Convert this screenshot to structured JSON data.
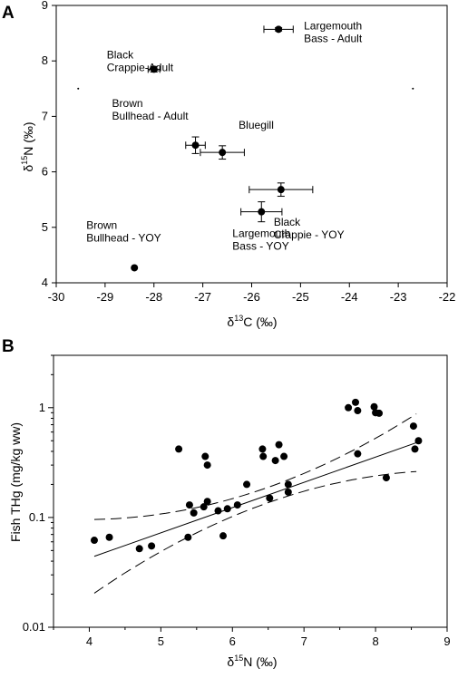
{
  "chart_data": [
    {
      "panel": "A",
      "type": "scatter",
      "xlabel": "δ13C (‰)",
      "ylabel": "δ15N (‰)",
      "xlim": [
        -30,
        -22
      ],
      "ylim": [
        4,
        9
      ],
      "xticks": [
        -30,
        -29,
        -28,
        -27,
        -26,
        -25,
        -24,
        -23,
        -22
      ],
      "yticks": [
        4,
        5,
        6,
        7,
        8,
        9
      ],
      "error_bars": true,
      "points": [
        {
          "label": "Largemouth Bass - Adult",
          "x": -25.45,
          "y": 8.57,
          "xerr": 0.3,
          "yerr": 0.03
        },
        {
          "label": "Black Crappie-Adult",
          "x": -28.0,
          "y": 7.85,
          "xerr": 0.12,
          "yerr": 0.05
        },
        {
          "label": "Brown Bullhead - Adult",
          "x": -27.15,
          "y": 6.48,
          "xerr": 0.2,
          "yerr": 0.15
        },
        {
          "label": "Bluegill",
          "x": -26.6,
          "y": 6.35,
          "xerr": 0.45,
          "yerr": 0.12
        },
        {
          "label": "Black Crappie - YOY",
          "x": -25.4,
          "y": 5.68,
          "xerr": 0.65,
          "yerr": 0.12
        },
        {
          "label": "Largemouth Bass - YOY",
          "x": -25.8,
          "y": 5.28,
          "xerr": 0.42,
          "yerr": 0.18
        },
        {
          "label": "Brown Bullhead - YOY",
          "x": -28.4,
          "y": 4.27,
          "xerr": 0,
          "yerr": 0
        }
      ]
    },
    {
      "panel": "B",
      "type": "scatter",
      "xlabel": "δ15N (‰)",
      "ylabel": "Fish THg (mg/kg ww)",
      "xlim": [
        3.5,
        9
      ],
      "ylim": [
        0.01,
        3
      ],
      "yscale": "log",
      "xticks": [
        4,
        5,
        6,
        7,
        8,
        9
      ],
      "yticks": [
        0.01,
        0.1,
        1
      ],
      "regression": {
        "intercept_log10": -2.29,
        "slope": 0.23,
        "confidence_band": true
      },
      "points": [
        {
          "x": 4.07,
          "y": 0.062
        },
        {
          "x": 4.28,
          "y": 0.066
        },
        {
          "x": 4.7,
          "y": 0.052
        },
        {
          "x": 4.87,
          "y": 0.055
        },
        {
          "x": 5.25,
          "y": 0.42
        },
        {
          "x": 5.38,
          "y": 0.066
        },
        {
          "x": 5.4,
          "y": 0.13
        },
        {
          "x": 5.46,
          "y": 0.11
        },
        {
          "x": 5.6,
          "y": 0.125
        },
        {
          "x": 5.62,
          "y": 0.36
        },
        {
          "x": 5.65,
          "y": 0.3
        },
        {
          "x": 5.65,
          "y": 0.14
        },
        {
          "x": 5.8,
          "y": 0.115
        },
        {
          "x": 5.87,
          "y": 0.068
        },
        {
          "x": 5.93,
          "y": 0.12
        },
        {
          "x": 6.07,
          "y": 0.13
        },
        {
          "x": 6.2,
          "y": 0.2
        },
        {
          "x": 6.42,
          "y": 0.42
        },
        {
          "x": 6.43,
          "y": 0.36
        },
        {
          "x": 6.52,
          "y": 0.15
        },
        {
          "x": 6.6,
          "y": 0.33
        },
        {
          "x": 6.65,
          "y": 0.46
        },
        {
          "x": 6.72,
          "y": 0.36
        },
        {
          "x": 6.78,
          "y": 0.2
        },
        {
          "x": 6.78,
          "y": 0.17
        },
        {
          "x": 7.62,
          "y": 1.0
        },
        {
          "x": 7.72,
          "y": 1.12
        },
        {
          "x": 7.75,
          "y": 0.94
        },
        {
          "x": 7.75,
          "y": 0.38
        },
        {
          "x": 7.98,
          "y": 1.02
        },
        {
          "x": 8.0,
          "y": 0.9
        },
        {
          "x": 8.05,
          "y": 0.89
        },
        {
          "x": 8.15,
          "y": 0.23
        },
        {
          "x": 8.53,
          "y": 0.68
        },
        {
          "x": 8.55,
          "y": 0.42
        },
        {
          "x": 8.6,
          "y": 0.5
        }
      ]
    }
  ],
  "panels": {
    "a": {
      "letter": "A",
      "xlabel_main": "δ",
      "xlabel_sup": "13",
      "xlabel_rest": "C  (‰)",
      "ylabel_main": "δ",
      "ylabel_sup": "15",
      "ylabel_rest": "N    (‰)"
    },
    "b": {
      "letter": "B",
      "xlabel_main": "δ",
      "xlabel_sup": "15",
      "xlabel_rest": "N    (‰)",
      "ylabel": "Fish THg (mg/kg ww)"
    }
  }
}
